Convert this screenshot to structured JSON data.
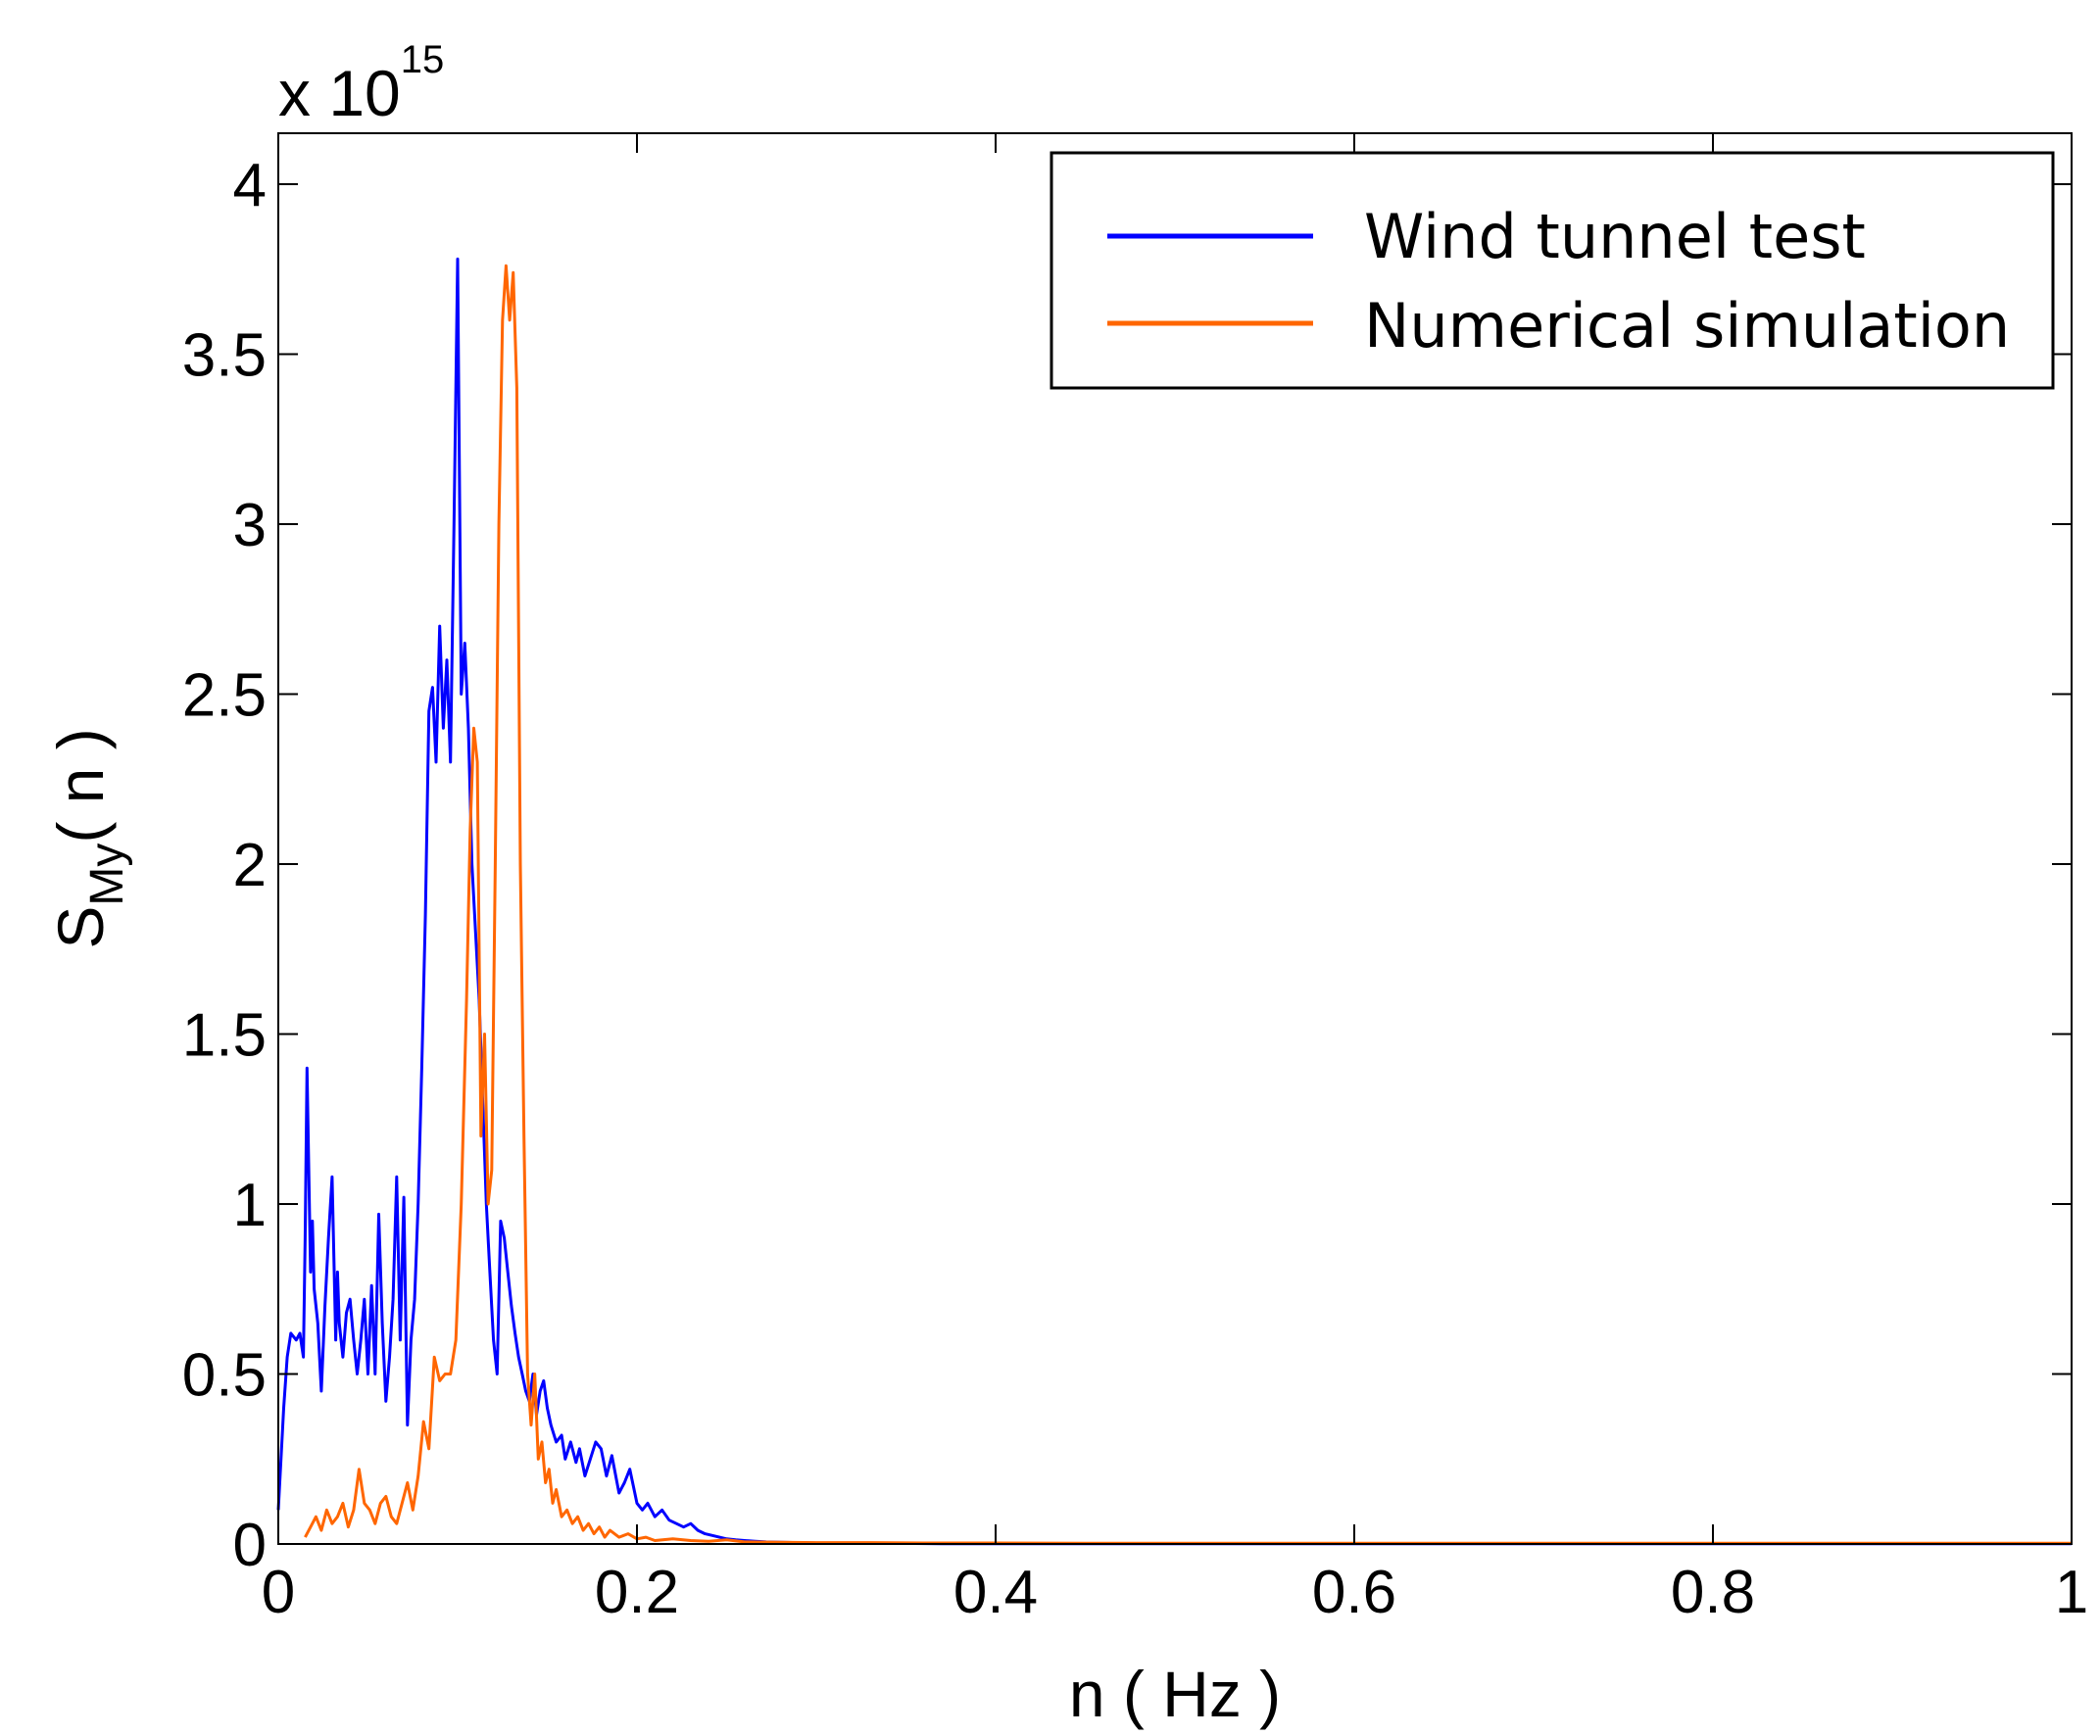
{
  "chart_data": {
    "type": "line",
    "title": "",
    "xlabel": "n ( Hz )",
    "ylabel": "S",
    "ylabel_subscript": "My",
    "ylabel_suffix": "( n )",
    "y_multiplier_base": "x 10",
    "y_multiplier_exponent": "15",
    "xlim": [
      0,
      1
    ],
    "ylim": [
      0,
      4.15
    ],
    "x_ticks": [
      0,
      0.2,
      0.4,
      0.6,
      0.8,
      1
    ],
    "x_tick_labels": [
      "0",
      "0.2",
      "0.4",
      "0.6",
      "0.8",
      "1"
    ],
    "y_ticks": [
      0,
      0.5,
      1,
      1.5,
      2,
      2.5,
      3,
      3.5,
      4
    ],
    "y_tick_labels": [
      "0",
      "0.5",
      "1",
      "1.5",
      "2",
      "2.5",
      "3",
      "3.5",
      "4"
    ],
    "grid": false,
    "legend_position": "top-right",
    "series": [
      {
        "name": "Wind tunnel test",
        "color": "#0000ff",
        "x": [
          0.0,
          0.003,
          0.005,
          0.007,
          0.01,
          0.012,
          0.014,
          0.015,
          0.016,
          0.017,
          0.018,
          0.019,
          0.02,
          0.022,
          0.024,
          0.026,
          0.028,
          0.03,
          0.032,
          0.033,
          0.034,
          0.036,
          0.038,
          0.04,
          0.042,
          0.044,
          0.046,
          0.048,
          0.05,
          0.052,
          0.054,
          0.056,
          0.058,
          0.06,
          0.062,
          0.064,
          0.066,
          0.068,
          0.07,
          0.072,
          0.074,
          0.076,
          0.078,
          0.08,
          0.082,
          0.084,
          0.086,
          0.088,
          0.09,
          0.092,
          0.094,
          0.096,
          0.098,
          0.1,
          0.102,
          0.104,
          0.106,
          0.108,
          0.11,
          0.112,
          0.114,
          0.116,
          0.118,
          0.12,
          0.122,
          0.124,
          0.126,
          0.128,
          0.13,
          0.132,
          0.134,
          0.136,
          0.138,
          0.14,
          0.142,
          0.144,
          0.146,
          0.148,
          0.15,
          0.152,
          0.155,
          0.158,
          0.16,
          0.163,
          0.166,
          0.168,
          0.171,
          0.174,
          0.177,
          0.18,
          0.183,
          0.186,
          0.19,
          0.193,
          0.196,
          0.2,
          0.203,
          0.206,
          0.21,
          0.214,
          0.218,
          0.222,
          0.226,
          0.23,
          0.234,
          0.238,
          0.242,
          0.246,
          0.25,
          0.255,
          0.26,
          0.266,
          0.272,
          0.28,
          0.29,
          0.3,
          0.32,
          0.34,
          0.37,
          0.4,
          0.45,
          0.5,
          0.6,
          0.7,
          0.8,
          0.9,
          1.0
        ],
        "y": [
          0.1,
          0.4,
          0.55,
          0.62,
          0.6,
          0.62,
          0.55,
          0.9,
          1.4,
          1.1,
          0.8,
          0.95,
          0.75,
          0.65,
          0.45,
          0.7,
          0.9,
          1.08,
          0.6,
          0.8,
          0.65,
          0.55,
          0.68,
          0.72,
          0.6,
          0.5,
          0.6,
          0.72,
          0.5,
          0.76,
          0.5,
          0.97,
          0.65,
          0.42,
          0.55,
          0.72,
          1.08,
          0.6,
          1.02,
          0.35,
          0.6,
          0.72,
          1.0,
          1.4,
          1.85,
          2.45,
          2.52,
          2.3,
          2.7,
          2.4,
          2.6,
          2.3,
          3.0,
          3.78,
          2.5,
          2.65,
          2.4,
          2.0,
          1.8,
          1.6,
          1.3,
          1.0,
          0.8,
          0.6,
          0.5,
          0.95,
          0.9,
          0.8,
          0.7,
          0.62,
          0.55,
          0.5,
          0.45,
          0.42,
          0.5,
          0.38,
          0.45,
          0.48,
          0.4,
          0.35,
          0.3,
          0.32,
          0.25,
          0.3,
          0.24,
          0.28,
          0.2,
          0.25,
          0.3,
          0.28,
          0.2,
          0.26,
          0.15,
          0.18,
          0.22,
          0.12,
          0.1,
          0.12,
          0.08,
          0.1,
          0.07,
          0.06,
          0.05,
          0.06,
          0.04,
          0.03,
          0.025,
          0.02,
          0.015,
          0.012,
          0.01,
          0.008,
          0.006,
          0.005,
          0.004,
          0.003,
          0.002,
          0.002,
          0.001,
          0.001,
          0.001,
          0.001,
          0.001,
          0.001,
          0.001,
          0.001,
          0.001
        ]
      },
      {
        "name": "Numerical simulation",
        "color": "#ff6600",
        "x": [
          0.015,
          0.018,
          0.021,
          0.024,
          0.027,
          0.03,
          0.033,
          0.036,
          0.039,
          0.042,
          0.045,
          0.048,
          0.051,
          0.054,
          0.057,
          0.06,
          0.063,
          0.066,
          0.069,
          0.072,
          0.075,
          0.078,
          0.081,
          0.084,
          0.087,
          0.09,
          0.093,
          0.096,
          0.099,
          0.102,
          0.105,
          0.107,
          0.109,
          0.111,
          0.113,
          0.115,
          0.117,
          0.119,
          0.121,
          0.123,
          0.125,
          0.127,
          0.129,
          0.131,
          0.133,
          0.135,
          0.137,
          0.139,
          0.141,
          0.143,
          0.145,
          0.147,
          0.149,
          0.151,
          0.153,
          0.155,
          0.158,
          0.161,
          0.164,
          0.167,
          0.17,
          0.173,
          0.176,
          0.179,
          0.182,
          0.185,
          0.19,
          0.195,
          0.2,
          0.205,
          0.21,
          0.22,
          0.23,
          0.24,
          0.25,
          0.26,
          0.28,
          0.3,
          0.33,
          0.36,
          0.4,
          0.45,
          0.5,
          0.6,
          0.7,
          0.8,
          0.9,
          1.0
        ],
        "y": [
          0.02,
          0.05,
          0.08,
          0.04,
          0.1,
          0.06,
          0.08,
          0.12,
          0.05,
          0.1,
          0.22,
          0.12,
          0.1,
          0.06,
          0.12,
          0.14,
          0.08,
          0.06,
          0.12,
          0.18,
          0.1,
          0.2,
          0.36,
          0.28,
          0.55,
          0.48,
          0.5,
          0.5,
          0.6,
          1.0,
          1.6,
          2.1,
          2.4,
          2.3,
          1.2,
          1.5,
          1.0,
          1.1,
          2.0,
          3.0,
          3.6,
          3.76,
          3.6,
          3.74,
          3.4,
          2.0,
          1.2,
          0.5,
          0.35,
          0.5,
          0.25,
          0.3,
          0.18,
          0.22,
          0.12,
          0.16,
          0.08,
          0.1,
          0.06,
          0.08,
          0.04,
          0.06,
          0.03,
          0.05,
          0.02,
          0.04,
          0.02,
          0.03,
          0.015,
          0.02,
          0.01,
          0.015,
          0.01,
          0.008,
          0.012,
          0.006,
          0.005,
          0.004,
          0.004,
          0.003,
          0.003,
          0.002,
          0.002,
          0.002,
          0.002,
          0.002,
          0.002,
          0.002
        ]
      }
    ]
  }
}
